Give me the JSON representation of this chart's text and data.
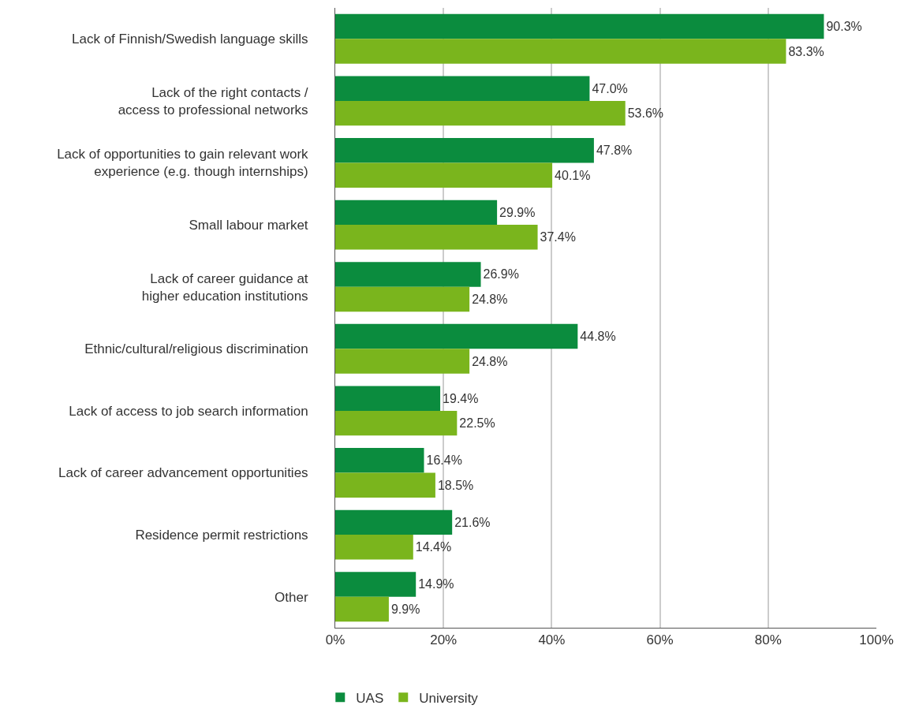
{
  "chart_data": {
    "type": "bar",
    "orientation": "horizontal",
    "categories": [
      "Lack of Finnish/Swedish language skills",
      "Lack of the right contacts /\naccess to professional networks",
      "Lack of opportunities to gain relevant work\nexperience (e.g. though internships)",
      "Small labour market",
      "Lack of career guidance at\nhigher education institutions",
      "Ethnic/cultural/religious discrimination",
      "Lack of access to job search information",
      "Lack of career advancement opportunities",
      "Residence permit restrictions",
      "Other"
    ],
    "series": [
      {
        "name": "UAS",
        "color": "#0b8c3e",
        "values": [
          90.3,
          47.0,
          47.8,
          29.9,
          26.9,
          44.8,
          19.4,
          16.4,
          21.6,
          14.9
        ],
        "value_labels": [
          "90.3%",
          "47.0%",
          "47.8%",
          "29.9%",
          "26.9%",
          "44.8%",
          "19.4%",
          "16.4%",
          "21.6%",
          "14.9%"
        ]
      },
      {
        "name": "University",
        "color": "#7ab51d",
        "values": [
          83.3,
          53.6,
          40.1,
          37.4,
          24.8,
          24.8,
          22.5,
          18.5,
          14.4,
          9.9
        ],
        "value_labels": [
          "83.3%",
          "53.6%",
          "40.1%",
          "37.4%",
          "24.8%",
          "24.8%",
          "22.5%",
          "18.5%",
          "14.4%",
          "9.9%"
        ]
      }
    ],
    "xlim": [
      0,
      100
    ],
    "xticks": [
      {
        "value": 0,
        "label": "0%"
      },
      {
        "value": 20,
        "label": "20%"
      },
      {
        "value": 40,
        "label": "40%"
      },
      {
        "value": 60,
        "label": "60%"
      },
      {
        "value": 80,
        "label": "80%"
      },
      {
        "value": 100,
        "label": "100%"
      }
    ],
    "grid": "x",
    "legend": "bottom left"
  }
}
